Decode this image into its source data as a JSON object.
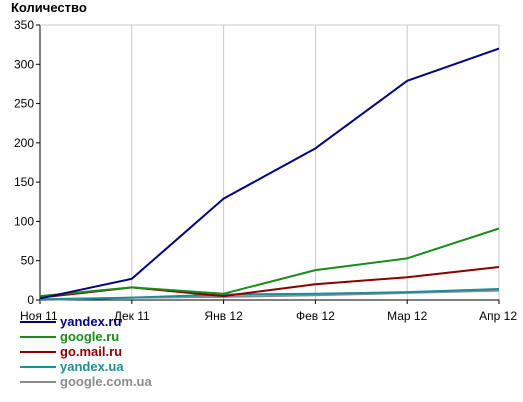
{
  "chart_data": {
    "type": "line",
    "title": "",
    "ylabel": "Количество",
    "xlabel": "",
    "categories": [
      "Ноя 11",
      "Дек 11",
      "Янв 12",
      "Фев 12",
      "Мар 12",
      "Апр 12"
    ],
    "ylim": [
      0,
      350
    ],
    "yticks": [
      0,
      50,
      100,
      150,
      200,
      250,
      300,
      350
    ],
    "grid": "vertical",
    "legend_position": "bottom-left",
    "series": [
      {
        "name": "yandex.ru",
        "color": "#000080",
        "values": [
          2,
          27,
          129,
          193,
          279,
          320
        ]
      },
      {
        "name": "google.ru",
        "color": "#1a8c1a",
        "values": [
          5,
          16,
          8,
          38,
          53,
          91
        ]
      },
      {
        "name": "go.mail.ru",
        "color": "#8b0000",
        "values": [
          3,
          16,
          5,
          20,
          29,
          42
        ]
      },
      {
        "name": "yandex.ua",
        "color": "#1a8f99",
        "values": [
          1,
          3,
          7,
          8,
          10,
          14
        ]
      },
      {
        "name": "google.com.ua",
        "color": "#8c8c8c",
        "values": [
          0,
          3,
          4,
          6,
          9,
          12
        ]
      }
    ]
  }
}
